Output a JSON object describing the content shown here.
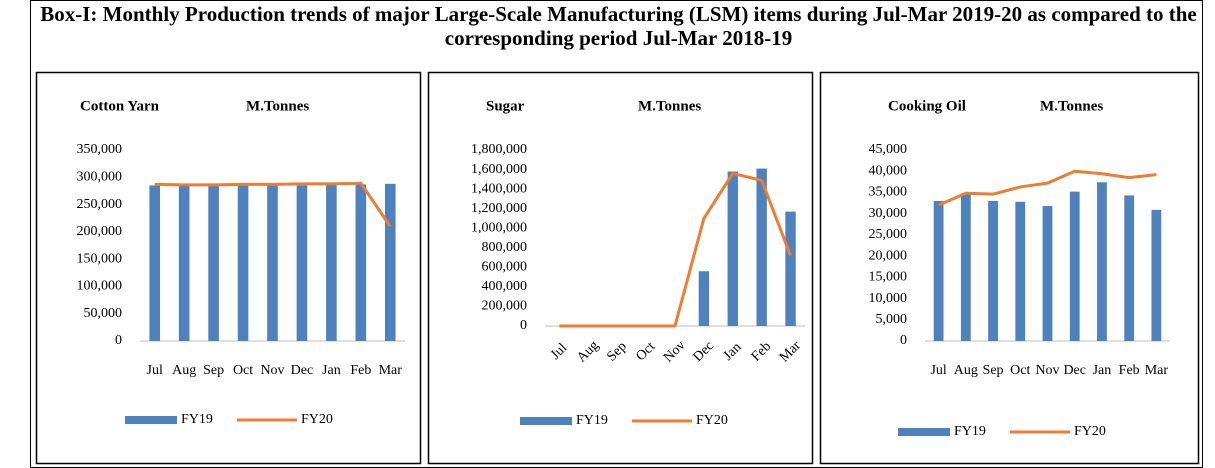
{
  "title": "Box-I: Monthly Production trends of major Large-Scale Manufacturing (LSM) items during Jul-Mar 2019-20 as compared to the corresponding period Jul-Mar 2018-19",
  "chart_data": [
    {
      "type": "combo",
      "title": "Cotton Yarn",
      "ylabel": "M.Tonnes",
      "categories": [
        "Jul",
        "Aug",
        "Sep",
        "Oct",
        "Nov",
        "Dec",
        "Jan",
        "Feb",
        "Mar"
      ],
      "series": [
        {
          "name": "FY19",
          "type": "bar",
          "color": "#4f81bd",
          "values": [
            285000,
            285000,
            285000,
            285000,
            285000,
            285000,
            286000,
            287000,
            288000
          ]
        },
        {
          "name": "FY20",
          "type": "line",
          "color": "#ed7d31",
          "values": [
            287000,
            286000,
            286000,
            287000,
            287000,
            288000,
            288000,
            289000,
            210000
          ]
        }
      ],
      "ylim": [
        0,
        350000
      ],
      "yticks": [
        0,
        {
          "value": 50000,
          "label": "50,000"
        },
        {
          "value": 100000,
          "label": "100,000"
        },
        {
          "value": 150000,
          "label": "150,000"
        },
        {
          "value": 200000,
          "label": "200,000"
        },
        {
          "value": 250000,
          "label": "250,000"
        },
        {
          "value": 300000,
          "label": "300,000"
        },
        {
          "value": 350000,
          "label": "350,000"
        }
      ],
      "grid": false,
      "legend": "bottom"
    },
    {
      "type": "combo",
      "title": "Sugar",
      "ylabel": "M.Tonnes",
      "categories": [
        "Jul",
        "Aug",
        "Sep",
        "Oct",
        "Nov",
        "Dec",
        "Jan",
        "Feb",
        "Mar"
      ],
      "series": [
        {
          "name": "FY19",
          "type": "bar",
          "color": "#4f81bd",
          "values": [
            0,
            0,
            0,
            0,
            0,
            560000,
            1580000,
            1610000,
            1170000
          ]
        },
        {
          "name": "FY20",
          "type": "line",
          "color": "#ed7d31",
          "values": [
            0,
            0,
            0,
            0,
            0,
            1100000,
            1560000,
            1490000,
            720000
          ]
        }
      ],
      "ylim": [
        0,
        1800000
      ],
      "yticks": [
        0,
        {
          "value": 200000,
          "label": "200,000"
        },
        {
          "value": 400000,
          "label": "400,000"
        },
        {
          "value": 600000,
          "label": "600,000"
        },
        {
          "value": 800000,
          "label": "800,000"
        },
        {
          "value": 1000000,
          "label": "1,000,000"
        },
        {
          "value": 1200000,
          "label": "1,200,000"
        },
        {
          "value": 1400000,
          "label": "1,400,000"
        },
        {
          "value": 1600000,
          "label": "1,600,000"
        },
        {
          "value": 1800000,
          "label": "1,800,000"
        }
      ],
      "grid": false,
      "legend": "bottom"
    },
    {
      "type": "combo",
      "title": "Cooking Oil",
      "ylabel": "M.Tonnes",
      "categories": [
        "Jul",
        "Aug",
        "Sep",
        "Oct",
        "Nov",
        "Dec",
        "Jan",
        "Feb",
        "Mar"
      ],
      "series": [
        {
          "name": "FY19",
          "type": "bar",
          "color": "#4f81bd",
          "values": [
            33000,
            34800,
            33000,
            32800,
            31800,
            35200,
            37400,
            34300,
            30900
          ]
        },
        {
          "name": "FY20",
          "type": "line",
          "color": "#ed7d31",
          "values": [
            32000,
            34800,
            34600,
            36300,
            37200,
            40000,
            39400,
            38500,
            39200
          ]
        }
      ],
      "ylim": [
        0,
        45000
      ],
      "yticks": [
        0,
        {
          "value": 5000,
          "label": "5,000"
        },
        {
          "value": 10000,
          "label": "10,000"
        },
        {
          "value": 15000,
          "label": "15,000"
        },
        {
          "value": 20000,
          "label": "20,000"
        },
        {
          "value": 25000,
          "label": "25,000"
        },
        {
          "value": 30000,
          "label": "30,000"
        },
        {
          "value": 35000,
          "label": "35,000"
        },
        {
          "value": 40000,
          "label": "40,000"
        },
        {
          "value": 45000,
          "label": "45,000"
        }
      ],
      "grid": false,
      "legend": "bottom"
    }
  ]
}
